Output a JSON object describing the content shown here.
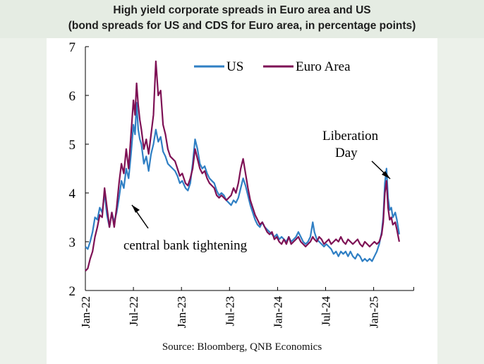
{
  "title": {
    "line1": "High yield corporate spreads in Euro area and US",
    "line2": "(bond spreads for US and CDS for Euro area, in percentage points)"
  },
  "source": "Source: Bloomberg, QNB Economics",
  "chart_data": {
    "type": "line",
    "ylim": [
      2,
      7
    ],
    "yticks": [
      "2",
      "3",
      "4",
      "5",
      "6",
      "7"
    ],
    "x_ticks": [
      "Jan-22",
      "Jul-22",
      "Jan-23",
      "Jul-23",
      "Jan-24",
      "Jul-24",
      "Jan-25"
    ],
    "x_range_months": [
      0,
      41
    ],
    "legend": {
      "position": "top-right",
      "entries": [
        "US",
        "Euro Area"
      ]
    },
    "annotations": [
      {
        "text": "central bank tightening",
        "target_month": 6.0,
        "target_value": 3.9
      },
      {
        "text_line1": "Liberation",
        "text_line2": "Day",
        "target_month": 39.2,
        "target_value": 4.3
      }
    ],
    "series": [
      {
        "name": "US",
        "color": "#2f7fc4",
        "points": [
          [
            0,
            2.9
          ],
          [
            0.3,
            2.85
          ],
          [
            0.6,
            3.0
          ],
          [
            0.9,
            3.2
          ],
          [
            1.2,
            3.5
          ],
          [
            1.5,
            3.45
          ],
          [
            1.8,
            3.7
          ],
          [
            2.1,
            3.6
          ],
          [
            2.4,
            4.0
          ],
          [
            2.7,
            3.55
          ],
          [
            3.0,
            3.3
          ],
          [
            3.3,
            3.6
          ],
          [
            3.6,
            3.4
          ],
          [
            3.9,
            3.6
          ],
          [
            4.2,
            3.9
          ],
          [
            4.5,
            4.25
          ],
          [
            4.8,
            4.1
          ],
          [
            5.1,
            4.5
          ],
          [
            5.4,
            4.3
          ],
          [
            5.7,
            4.8
          ],
          [
            6.0,
            5.4
          ],
          [
            6.2,
            5.2
          ],
          [
            6.4,
            5.85
          ],
          [
            6.6,
            5.3
          ],
          [
            6.8,
            5.1
          ],
          [
            7.0,
            5.0
          ],
          [
            7.3,
            4.6
          ],
          [
            7.6,
            4.75
          ],
          [
            7.9,
            4.45
          ],
          [
            8.2,
            4.8
          ],
          [
            8.5,
            5.0
          ],
          [
            8.8,
            5.3
          ],
          [
            9.1,
            5.05
          ],
          [
            9.4,
            5.15
          ],
          [
            9.7,
            4.85
          ],
          [
            10.0,
            4.75
          ],
          [
            10.3,
            4.6
          ],
          [
            10.6,
            4.55
          ],
          [
            10.9,
            4.5
          ],
          [
            11.2,
            4.45
          ],
          [
            11.5,
            4.35
          ],
          [
            11.8,
            4.2
          ],
          [
            12.1,
            4.25
          ],
          [
            12.5,
            4.1
          ],
          [
            12.8,
            4.05
          ],
          [
            13.1,
            4.2
          ],
          [
            13.4,
            4.6
          ],
          [
            13.7,
            5.1
          ],
          [
            14.0,
            4.9
          ],
          [
            14.3,
            4.6
          ],
          [
            14.6,
            4.5
          ],
          [
            14.9,
            4.55
          ],
          [
            15.2,
            4.4
          ],
          [
            15.5,
            4.3
          ],
          [
            15.8,
            4.25
          ],
          [
            16.1,
            4.2
          ],
          [
            16.4,
            4.05
          ],
          [
            16.7,
            3.95
          ],
          [
            17.0,
            4.0
          ],
          [
            17.3,
            3.95
          ],
          [
            17.6,
            3.85
          ],
          [
            17.9,
            3.8
          ],
          [
            18.2,
            3.75
          ],
          [
            18.5,
            3.85
          ],
          [
            18.8,
            3.8
          ],
          [
            19.1,
            3.9
          ],
          [
            19.4,
            4.1
          ],
          [
            19.7,
            4.3
          ],
          [
            20.0,
            4.15
          ],
          [
            20.3,
            3.95
          ],
          [
            20.6,
            3.75
          ],
          [
            20.9,
            3.6
          ],
          [
            21.2,
            3.45
          ],
          [
            21.5,
            3.35
          ],
          [
            21.8,
            3.3
          ],
          [
            22.1,
            3.4
          ],
          [
            22.4,
            3.3
          ],
          [
            22.7,
            3.25
          ],
          [
            23.0,
            3.2
          ],
          [
            23.3,
            3.15
          ],
          [
            23.6,
            3.1
          ],
          [
            23.9,
            3.15
          ],
          [
            24.2,
            3.05
          ],
          [
            24.5,
            3.1
          ],
          [
            24.8,
            3.05
          ],
          [
            25.1,
            3.0
          ],
          [
            25.4,
            3.1
          ],
          [
            25.7,
            3.0
          ],
          [
            26.0,
            3.05
          ],
          [
            26.3,
            3.1
          ],
          [
            26.6,
            3.2
          ],
          [
            26.9,
            3.1
          ],
          [
            27.2,
            3.0
          ],
          [
            27.5,
            2.95
          ],
          [
            27.8,
            3.0
          ],
          [
            28.1,
            3.1
          ],
          [
            28.4,
            3.4
          ],
          [
            28.6,
            3.2
          ],
          [
            28.9,
            3.05
          ],
          [
            29.2,
            3.0
          ],
          [
            29.5,
            2.95
          ],
          [
            29.8,
            2.9
          ],
          [
            30.1,
            2.95
          ],
          [
            30.4,
            2.9
          ],
          [
            30.7,
            2.85
          ],
          [
            31.0,
            2.75
          ],
          [
            31.3,
            2.8
          ],
          [
            31.6,
            2.7
          ],
          [
            31.9,
            2.8
          ],
          [
            32.2,
            2.75
          ],
          [
            32.5,
            2.8
          ],
          [
            32.8,
            2.7
          ],
          [
            33.1,
            2.8
          ],
          [
            33.4,
            2.7
          ],
          [
            33.7,
            2.65
          ],
          [
            34.0,
            2.75
          ],
          [
            34.3,
            2.7
          ],
          [
            34.6,
            2.6
          ],
          [
            34.9,
            2.65
          ],
          [
            35.2,
            2.6
          ],
          [
            35.5,
            2.65
          ],
          [
            35.8,
            2.6
          ],
          [
            36.1,
            2.7
          ],
          [
            36.4,
            2.8
          ],
          [
            36.7,
            2.95
          ],
          [
            37.0,
            3.2
          ],
          [
            37.2,
            3.5
          ],
          [
            37.4,
            4.2
          ],
          [
            37.6,
            4.5
          ],
          [
            37.8,
            3.9
          ],
          [
            38.0,
            3.65
          ],
          [
            38.2,
            3.7
          ],
          [
            38.4,
            3.5
          ],
          [
            38.7,
            3.6
          ],
          [
            38.9,
            3.45
          ],
          [
            39.2,
            3.15
          ]
        ]
      },
      {
        "name": "Euro Area",
        "color": "#7e1155",
        "points": [
          [
            0,
            2.4
          ],
          [
            0.3,
            2.45
          ],
          [
            0.6,
            2.65
          ],
          [
            0.9,
            2.8
          ],
          [
            1.2,
            3.1
          ],
          [
            1.5,
            3.3
          ],
          [
            1.8,
            3.55
          ],
          [
            2.1,
            3.5
          ],
          [
            2.4,
            4.1
          ],
          [
            2.7,
            3.7
          ],
          [
            3.0,
            3.3
          ],
          [
            3.3,
            3.6
          ],
          [
            3.6,
            3.3
          ],
          [
            3.9,
            3.7
          ],
          [
            4.2,
            4.2
          ],
          [
            4.5,
            4.6
          ],
          [
            4.8,
            4.4
          ],
          [
            5.1,
            4.9
          ],
          [
            5.4,
            4.5
          ],
          [
            5.7,
            5.2
          ],
          [
            6.0,
            5.9
          ],
          [
            6.2,
            5.6
          ],
          [
            6.4,
            6.25
          ],
          [
            6.6,
            5.8
          ],
          [
            6.8,
            5.5
          ],
          [
            7.0,
            5.3
          ],
          [
            7.3,
            4.9
          ],
          [
            7.6,
            5.1
          ],
          [
            7.9,
            4.8
          ],
          [
            8.2,
            5.2
          ],
          [
            8.5,
            5.6
          ],
          [
            8.8,
            6.7
          ],
          [
            9.1,
            6.0
          ],
          [
            9.4,
            6.1
          ],
          [
            9.7,
            5.4
          ],
          [
            10.0,
            5.2
          ],
          [
            10.3,
            4.9
          ],
          [
            10.6,
            4.75
          ],
          [
            10.9,
            4.7
          ],
          [
            11.2,
            4.65
          ],
          [
            11.5,
            4.5
          ],
          [
            11.8,
            4.35
          ],
          [
            12.1,
            4.4
          ],
          [
            12.5,
            4.2
          ],
          [
            12.8,
            4.15
          ],
          [
            13.1,
            4.3
          ],
          [
            13.4,
            4.5
          ],
          [
            13.7,
            4.9
          ],
          [
            14.0,
            4.7
          ],
          [
            14.3,
            4.5
          ],
          [
            14.6,
            4.4
          ],
          [
            14.9,
            4.45
          ],
          [
            15.2,
            4.3
          ],
          [
            15.5,
            4.2
          ],
          [
            15.8,
            4.15
          ],
          [
            16.1,
            4.1
          ],
          [
            16.4,
            3.95
          ],
          [
            16.7,
            3.9
          ],
          [
            17.0,
            3.95
          ],
          [
            17.3,
            3.9
          ],
          [
            17.6,
            3.85
          ],
          [
            17.9,
            3.9
          ],
          [
            18.2,
            3.95
          ],
          [
            18.5,
            4.1
          ],
          [
            18.8,
            4.0
          ],
          [
            19.1,
            4.2
          ],
          [
            19.4,
            4.5
          ],
          [
            19.7,
            4.7
          ],
          [
            20.0,
            4.4
          ],
          [
            20.3,
            4.1
          ],
          [
            20.6,
            3.85
          ],
          [
            20.9,
            3.7
          ],
          [
            21.2,
            3.55
          ],
          [
            21.5,
            3.45
          ],
          [
            21.8,
            3.35
          ],
          [
            22.1,
            3.4
          ],
          [
            22.4,
            3.3
          ],
          [
            22.7,
            3.2
          ],
          [
            23.0,
            3.15
          ],
          [
            23.3,
            3.2
          ],
          [
            23.6,
            3.05
          ],
          [
            23.9,
            3.1
          ],
          [
            24.2,
            3.0
          ],
          [
            24.5,
            2.95
          ],
          [
            24.8,
            3.05
          ],
          [
            25.1,
            2.95
          ],
          [
            25.4,
            3.1
          ],
          [
            25.7,
            2.95
          ],
          [
            26.0,
            3.0
          ],
          [
            26.3,
            3.05
          ],
          [
            26.6,
            3.1
          ],
          [
            26.9,
            3.0
          ],
          [
            27.2,
            2.95
          ],
          [
            27.5,
            2.9
          ],
          [
            27.8,
            2.95
          ],
          [
            28.1,
            3.0
          ],
          [
            28.4,
            3.1
          ],
          [
            28.6,
            3.05
          ],
          [
            28.9,
            3.0
          ],
          [
            29.2,
            3.1
          ],
          [
            29.5,
            3.05
          ],
          [
            29.8,
            2.95
          ],
          [
            30.1,
            3.0
          ],
          [
            30.4,
            3.05
          ],
          [
            30.7,
            2.95
          ],
          [
            31.0,
            3.0
          ],
          [
            31.3,
            3.05
          ],
          [
            31.6,
            3.0
          ],
          [
            31.9,
            3.1
          ],
          [
            32.2,
            3.0
          ],
          [
            32.5,
            2.95
          ],
          [
            32.8,
            3.05
          ],
          [
            33.1,
            3.0
          ],
          [
            33.4,
            2.95
          ],
          [
            33.7,
            3.0
          ],
          [
            34.0,
            3.05
          ],
          [
            34.3,
            2.95
          ],
          [
            34.6,
            2.9
          ],
          [
            34.9,
            3.0
          ],
          [
            35.2,
            2.95
          ],
          [
            35.5,
            2.9
          ],
          [
            35.8,
            2.95
          ],
          [
            36.1,
            3.0
          ],
          [
            36.4,
            2.95
          ],
          [
            36.7,
            3.0
          ],
          [
            37.0,
            3.15
          ],
          [
            37.2,
            3.4
          ],
          [
            37.4,
            4.0
          ],
          [
            37.6,
            4.25
          ],
          [
            37.8,
            3.7
          ],
          [
            38.0,
            3.45
          ],
          [
            38.2,
            3.5
          ],
          [
            38.4,
            3.35
          ],
          [
            38.7,
            3.4
          ],
          [
            38.9,
            3.25
          ],
          [
            39.2,
            3.0
          ]
        ]
      }
    ]
  }
}
